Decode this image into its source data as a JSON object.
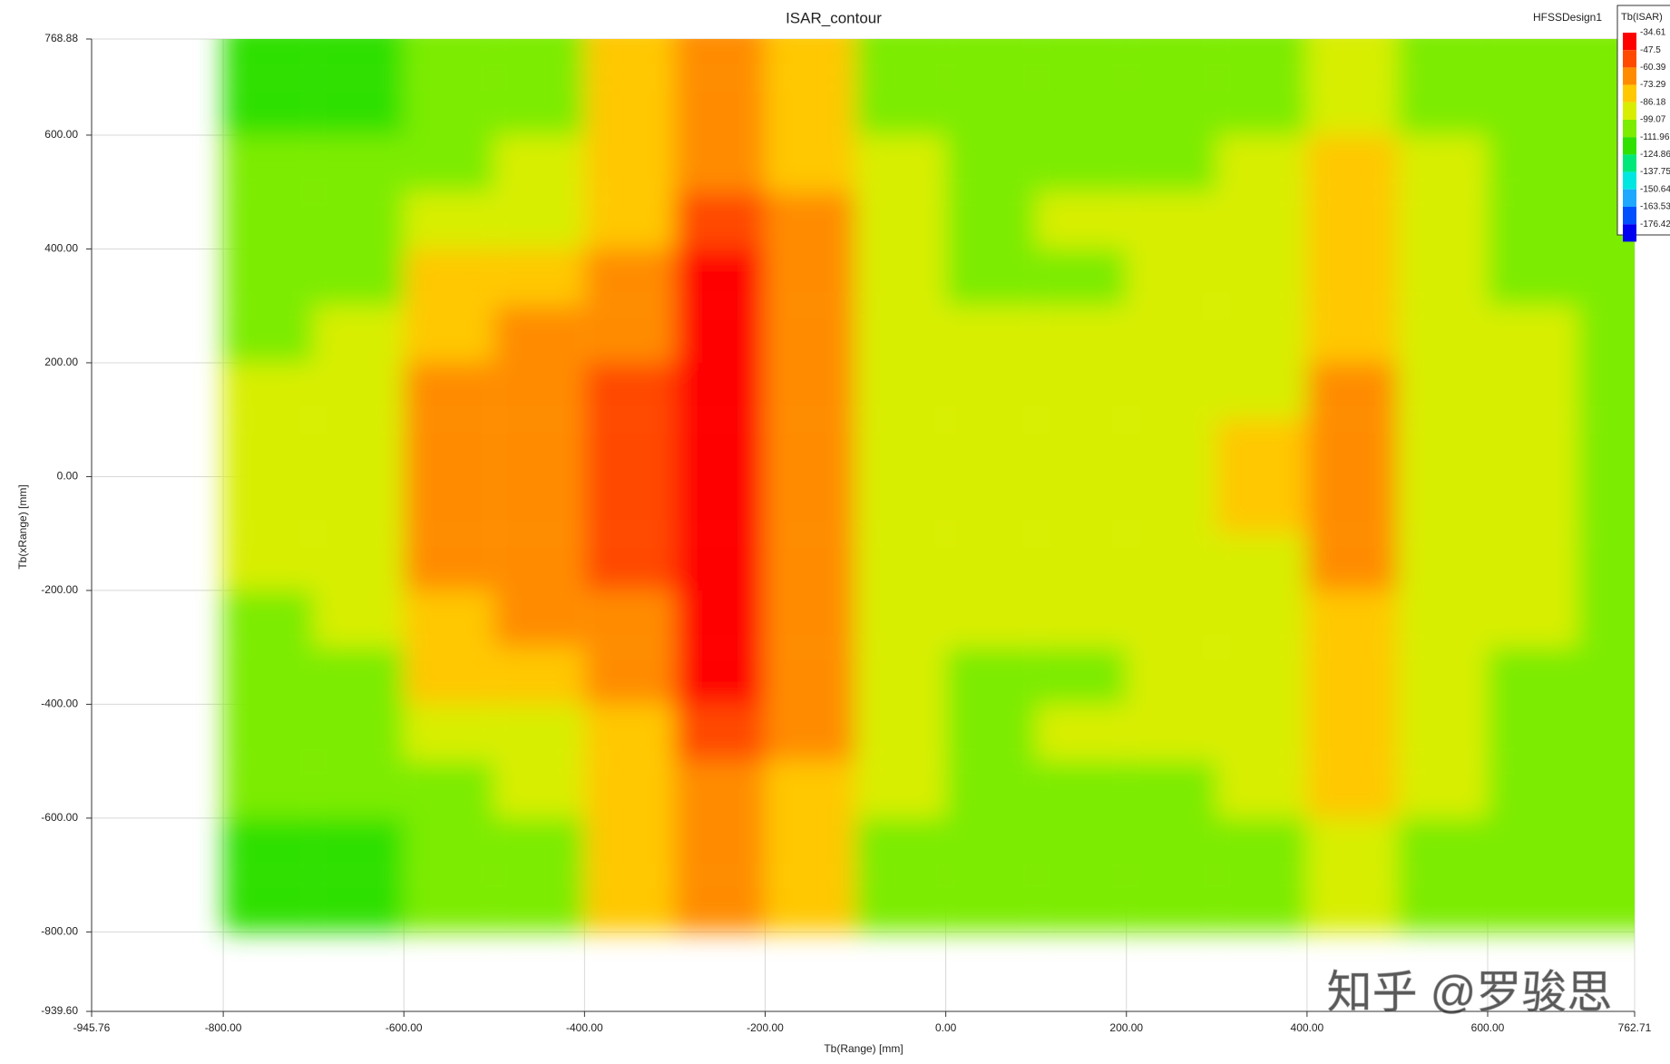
{
  "chart_data": {
    "type": "contour",
    "title": "ISAR_contour",
    "annotation": "HFSSDesign1",
    "watermark": "知乎 @罗骏思",
    "xlabel": "Tb(Range) [mm]",
    "ylabel": "Tb(xRange) [mm]",
    "xlim": [
      -945.76,
      762.71
    ],
    "ylim": [
      -939.6,
      768.88
    ],
    "xticks": [
      -945.76,
      {
        "value": -800,
        "label": "-800.00"
      },
      {
        "value": -600,
        "label": "-600.00"
      },
      {
        "value": -400,
        "label": "-400.00"
      },
      {
        "value": -200,
        "label": "-200.00"
      },
      {
        "value": 0,
        "label": "0.00"
      },
      {
        "value": 200,
        "label": "200.00"
      },
      {
        "value": 400,
        "label": "400.00"
      },
      {
        "value": 600,
        "label": "600.00"
      },
      762.71
    ],
    "yticks": [
      768.88,
      {
        "value": 600,
        "label": "600.00"
      },
      {
        "value": 400,
        "label": "400.00"
      },
      {
        "value": 200,
        "label": "200.00"
      },
      {
        "value": 0,
        "label": "0.00"
      },
      {
        "value": -200,
        "label": "-200.00"
      },
      {
        "value": -400,
        "label": "-400.00"
      },
      {
        "value": -600,
        "label": "-600.00"
      },
      {
        "value": -800,
        "label": "-800.00"
      },
      {
        "value": -939.6,
        "label": "-939.60"
      }
    ],
    "grid": true,
    "x": [
      -750,
      -650,
      -550,
      -450,
      -350,
      -250,
      -150,
      -50,
      50,
      150,
      250,
      350,
      450,
      550,
      650,
      750
    ],
    "y": [
      750,
      650,
      550,
      450,
      350,
      250,
      150,
      50,
      -50,
      -150,
      -250,
      -350,
      -450,
      -550,
      -650,
      -750
    ],
    "z": [
      [
        -115,
        -115,
        -108,
        -105,
        -85,
        -70,
        -82,
        -100,
        -102,
        -102,
        -102,
        -102,
        -90,
        -102,
        -104,
        -110
      ],
      [
        -112,
        -112,
        -106,
        -103,
        -82,
        -66,
        -80,
        -100,
        -102,
        -102,
        -101,
        -100,
        -88,
        -101,
        -103,
        -108
      ],
      [
        -100,
        -100,
        -100,
        -95,
        -78,
        -62,
        -75,
        -98,
        -100,
        -100,
        -100,
        -98,
        -85,
        -98,
        -100,
        -105
      ],
      [
        -100,
        -100,
        -96,
        -88,
        -74,
        -55,
        -72,
        -96,
        -100,
        -99,
        -97,
        -95,
        -84,
        -97,
        -100,
        -104
      ],
      [
        -100,
        -100,
        -85,
        -75,
        -65,
        -45,
        -70,
        -95,
        -100,
        -100,
        -95,
        -92,
        -82,
        -95,
        -100,
        -103
      ],
      [
        -100,
        -99,
        -78,
        -72,
        -62,
        -42,
        -68,
        -94,
        -99,
        -98,
        -93,
        -90,
        -80,
        -94,
        -99,
        -103
      ],
      [
        -98,
        -98,
        -70,
        -62,
        -55,
        -42,
        -68,
        -92,
        -96,
        -98,
        -92,
        -88,
        -72,
        -92,
        -98,
        -102
      ],
      [
        -98,
        -97,
        -66,
        -64,
        -50,
        -40,
        -66,
        -90,
        -95,
        -96,
        -90,
        -86,
        -62,
        -90,
        -97,
        -102
      ],
      [
        -98,
        -97,
        -66,
        -64,
        -50,
        -40,
        -66,
        -90,
        -95,
        -96,
        -90,
        -86,
        -62,
        -90,
        -97,
        -102
      ],
      [
        -98,
        -98,
        -70,
        -62,
        -55,
        -42,
        -68,
        -92,
        -96,
        -98,
        -92,
        -88,
        -72,
        -92,
        -98,
        -102
      ],
      [
        -100,
        -99,
        -78,
        -72,
        -62,
        -42,
        -68,
        -94,
        -99,
        -98,
        -93,
        -90,
        -80,
        -94,
        -99,
        -103
      ],
      [
        -100,
        -100,
        -85,
        -75,
        -65,
        -45,
        -70,
        -95,
        -100,
        -100,
        -95,
        -92,
        -82,
        -95,
        -100,
        -103
      ],
      [
        -100,
        -100,
        -96,
        -88,
        -74,
        -55,
        -72,
        -96,
        -100,
        -99,
        -97,
        -95,
        -84,
        -97,
        -100,
        -104
      ],
      [
        -100,
        -100,
        -100,
        -95,
        -78,
        -62,
        -75,
        -98,
        -100,
        -100,
        -100,
        -98,
        -85,
        -98,
        -100,
        -105
      ],
      [
        -112,
        -112,
        -106,
        -103,
        -82,
        -66,
        -80,
        -100,
        -102,
        -102,
        -101,
        -100,
        -88,
        -101,
        -103,
        -108
      ],
      [
        -115,
        -115,
        -108,
        -105,
        -85,
        -70,
        -82,
        -100,
        -102,
        -102,
        -102,
        -102,
        -90,
        -102,
        -104,
        -110
      ]
    ],
    "colorbar": {
      "title": "Tb(ISAR)",
      "levels": [
        -34.61,
        -47.5,
        -60.39,
        -73.29,
        -86.18,
        -99.07,
        -111.96,
        -124.86,
        -137.75,
        -150.64,
        -163.53,
        -176.42
      ],
      "colors": [
        "#ff0000",
        "#ff4a00",
        "#ff8c00",
        "#ffc800",
        "#d8ee00",
        "#7cec00",
        "#2fe000",
        "#00e87a",
        "#00e6e0",
        "#1fa8ff",
        "#0050ff",
        "#0000f0"
      ]
    }
  }
}
